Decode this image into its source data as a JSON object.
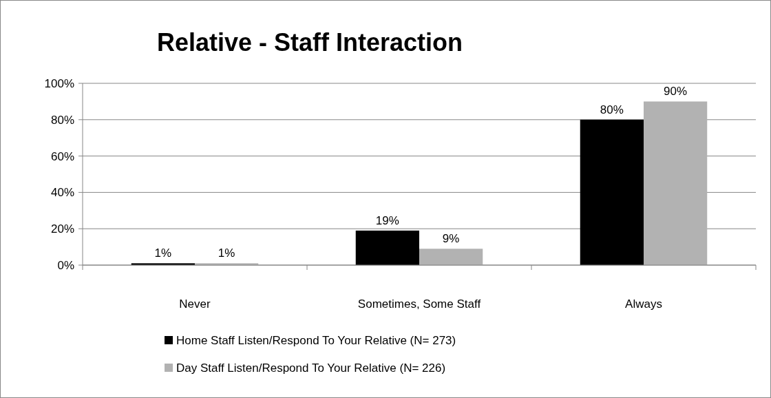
{
  "chart_data": {
    "type": "bar",
    "title": "Relative - Staff Interaction",
    "categories": [
      "Never",
      "Sometimes, Some Staff",
      "Always"
    ],
    "series": [
      {
        "name": "Home Staff Listen/Respond To Your Relative (N= 273)",
        "color": "#000000",
        "values": [
          1,
          19,
          80
        ],
        "value_labels": [
          "1%",
          "19%",
          "80%"
        ]
      },
      {
        "name": "Day Staff Listen/Respond To Your Relative (N= 226)",
        "color": "#b2b2b2",
        "values": [
          1,
          9,
          90
        ],
        "value_labels": [
          "1%",
          "9%",
          "90%"
        ]
      }
    ],
    "ylim": [
      0,
      100
    ],
    "yticks": [
      {
        "value": 0,
        "label": "0%"
      },
      {
        "value": 20,
        "label": "20%"
      },
      {
        "value": 40,
        "label": "40%"
      },
      {
        "value": 60,
        "label": "60%"
      },
      {
        "value": 80,
        "label": "80%"
      },
      {
        "value": 100,
        "label": "100%"
      }
    ],
    "grid": "y",
    "legend": "bottom"
  }
}
